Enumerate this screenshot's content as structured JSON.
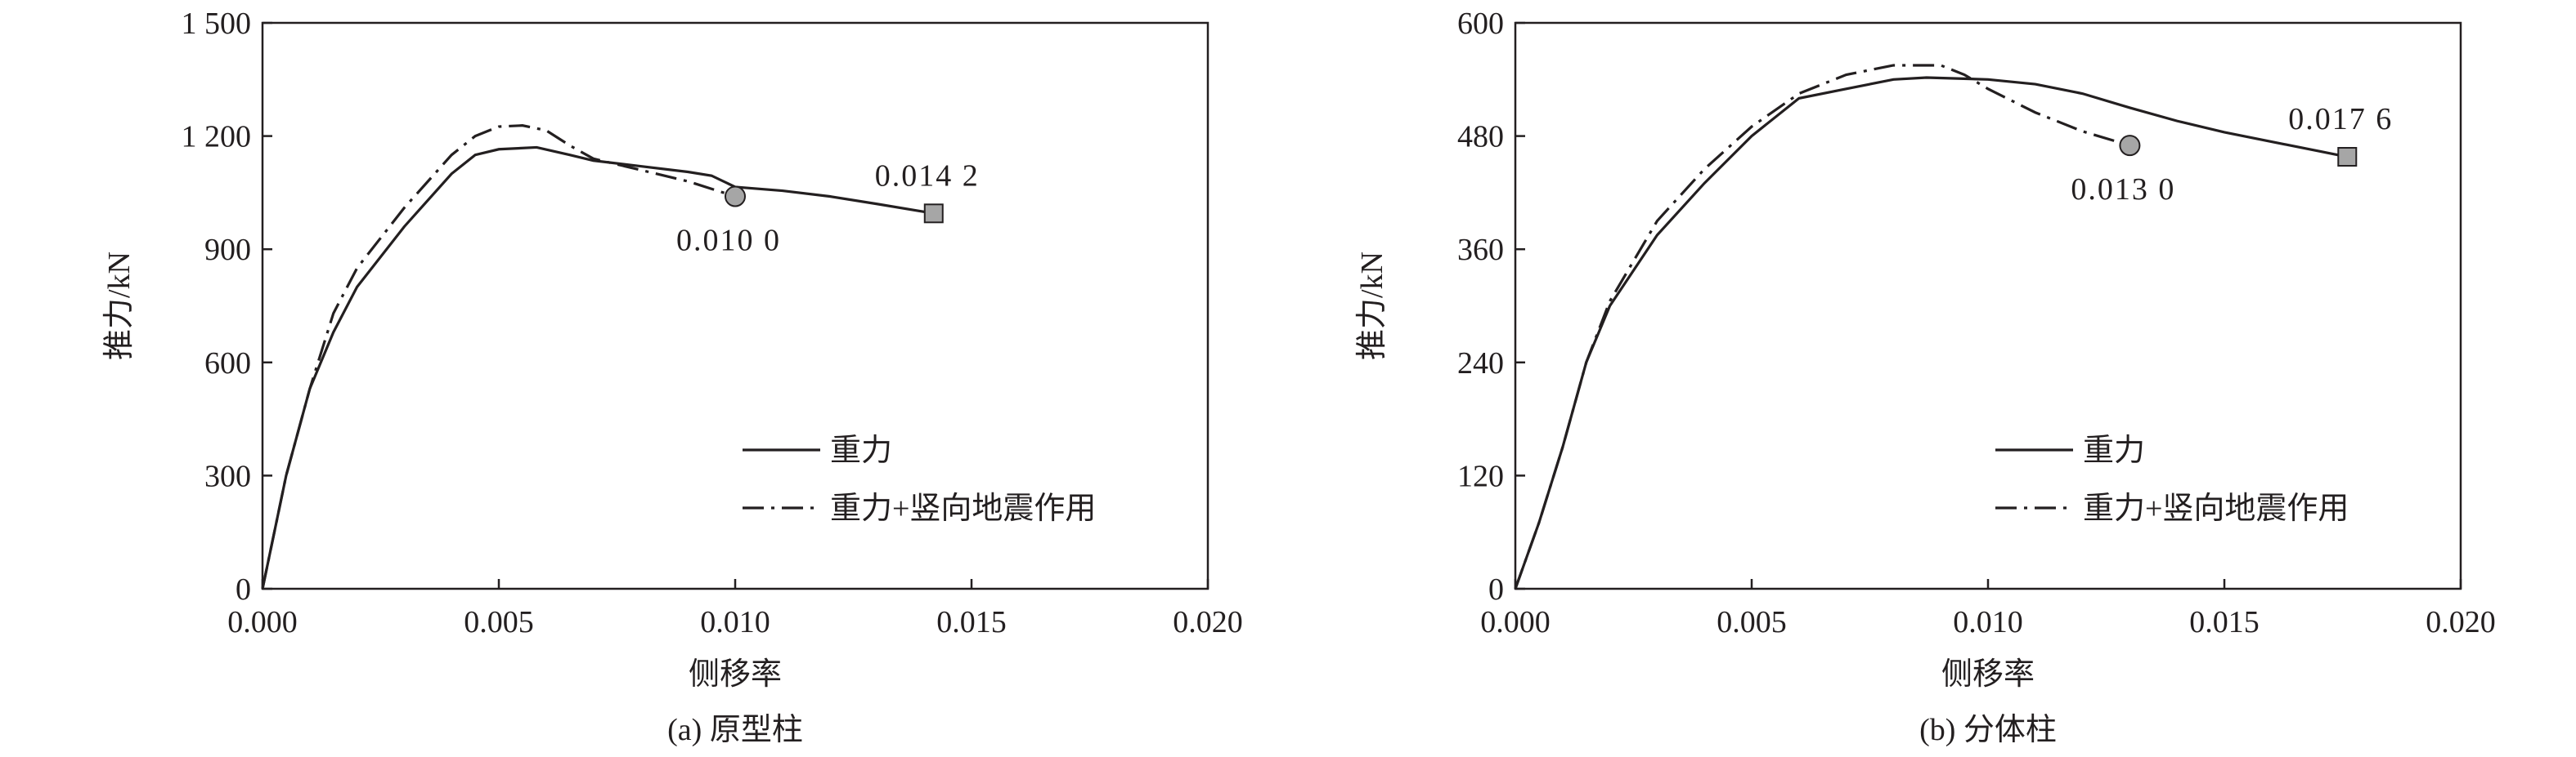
{
  "chart_data": [
    {
      "type": "line",
      "caption": "(a) 原型柱",
      "x_label": "侧移率",
      "y_label": "推力/kN",
      "xlim": [
        0,
        0.02
      ],
      "ylim": [
        0,
        1500
      ],
      "xticks": [
        {
          "value": 0,
          "label": "0.000"
        },
        {
          "value": 0.005,
          "label": "0.005"
        },
        {
          "value": 0.01,
          "label": "0.010"
        },
        {
          "value": 0.015,
          "label": "0.015"
        },
        {
          "value": 0.02,
          "label": "0.020"
        }
      ],
      "yticks": [
        0,
        300,
        600,
        900,
        {
          "value": 1200,
          "label": "1 200"
        },
        {
          "value": 1500,
          "label": "1 500"
        }
      ],
      "series": [
        {
          "name": "重力",
          "color": "#231f20",
          "dash": "solid",
          "marker": "square",
          "marker_color": "#a6a6a6",
          "x": [
            0,
            0.0005,
            0.001,
            0.0015,
            0.002,
            0.003,
            0.004,
            0.0045,
            0.005,
            0.0058,
            0.0065,
            0.007,
            0.008,
            0.009,
            0.0095,
            0.01,
            0.011,
            0.012,
            0.013,
            0.0142
          ],
          "values": [
            0,
            300,
            530,
            680,
            800,
            960,
            1100,
            1150,
            1165,
            1170,
            1150,
            1135,
            1120,
            1105,
            1095,
            1065,
            1055,
            1040,
            1020,
            995
          ],
          "end_label": {
            "value": 0.0142,
            "label": "0.014 2"
          }
        },
        {
          "name": "重力+竖向地震作用",
          "color": "#231f20",
          "dash": "dashdot",
          "marker": "circle",
          "marker_color": "#a6a6a6",
          "x": [
            0,
            0.0005,
            0.001,
            0.0015,
            0.002,
            0.003,
            0.004,
            0.0045,
            0.005,
            0.0055,
            0.006,
            0.0065,
            0.007,
            0.008,
            0.009,
            0.01
          ],
          "values": [
            0,
            300,
            530,
            730,
            850,
            1010,
            1150,
            1200,
            1225,
            1228,
            1215,
            1175,
            1140,
            1110,
            1080,
            1040
          ],
          "end_label": {
            "value": 0.01,
            "label": "0.010 0"
          }
        }
      ]
    },
    {
      "type": "line",
      "caption": "(b) 分体柱",
      "x_label": "侧移率",
      "y_label": "推力/kN",
      "xlim": [
        0,
        0.02
      ],
      "ylim": [
        0,
        600
      ],
      "xticks": [
        {
          "value": 0,
          "label": "0.000"
        },
        {
          "value": 0.005,
          "label": "0.005"
        },
        {
          "value": 0.01,
          "label": "0.010"
        },
        {
          "value": 0.015,
          "label": "0.015"
        },
        {
          "value": 0.02,
          "label": "0.020"
        }
      ],
      "yticks": [
        0,
        120,
        240,
        360,
        480,
        600
      ],
      "series": [
        {
          "name": "重力",
          "color": "#231f20",
          "dash": "solid",
          "marker": "square",
          "marker_color": "#a6a6a6",
          "x": [
            0,
            0.0005,
            0.001,
            0.0015,
            0.002,
            0.003,
            0.004,
            0.005,
            0.006,
            0.007,
            0.008,
            0.0087,
            0.01,
            0.011,
            0.012,
            0.013,
            0.014,
            0.015,
            0.016,
            0.017,
            0.0176
          ],
          "values": [
            0,
            70,
            150,
            240,
            300,
            375,
            430,
            480,
            520,
            530,
            540,
            542,
            540,
            535,
            525,
            510,
            496,
            484,
            474,
            464,
            458
          ],
          "end_label": {
            "value": 0.0176,
            "label": "0.017 6"
          }
        },
        {
          "name": "重力+竖向地震作用",
          "color": "#231f20",
          "dash": "dashdot",
          "marker": "circle",
          "marker_color": "#a6a6a6",
          "x": [
            0,
            0.0005,
            0.001,
            0.0015,
            0.002,
            0.003,
            0.004,
            0.005,
            0.006,
            0.007,
            0.008,
            0.009,
            0.0095,
            0.01,
            0.011,
            0.012,
            0.013
          ],
          "values": [
            0,
            70,
            150,
            240,
            305,
            390,
            445,
            490,
            525,
            545,
            555,
            555,
            545,
            530,
            505,
            485,
            470
          ],
          "end_label": {
            "value": 0.013,
            "label": "0.013 0"
          }
        }
      ]
    }
  ]
}
